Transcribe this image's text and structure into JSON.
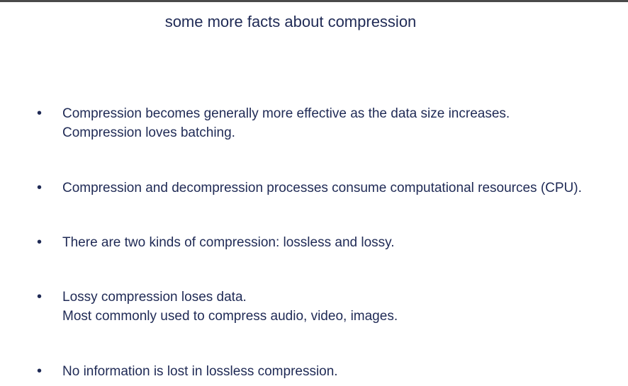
{
  "slide": {
    "title": "some more facts about compression",
    "bullets": [
      {
        "symbol": "•",
        "lines": [
          "Compression becomes generally more effective as the data size increases.",
          "Compression loves batching."
        ]
      },
      {
        "symbol": "•",
        "lines": [
          "Compression and decompression processes consume computational resources (CPU)."
        ]
      },
      {
        "symbol": "•",
        "lines": [
          "There are two kinds of compression: lossless and lossy."
        ]
      },
      {
        "symbol": "•",
        "lines": [
          "Lossy compression loses data.",
          "Most commonly used to compress audio, video, images."
        ]
      },
      {
        "symbol": "•",
        "lines": [
          "No information is lost in lossless compression."
        ]
      }
    ]
  },
  "colors": {
    "text": "#1f2a55",
    "top_rule": "#4a4a4a",
    "background": "#ffffff"
  }
}
